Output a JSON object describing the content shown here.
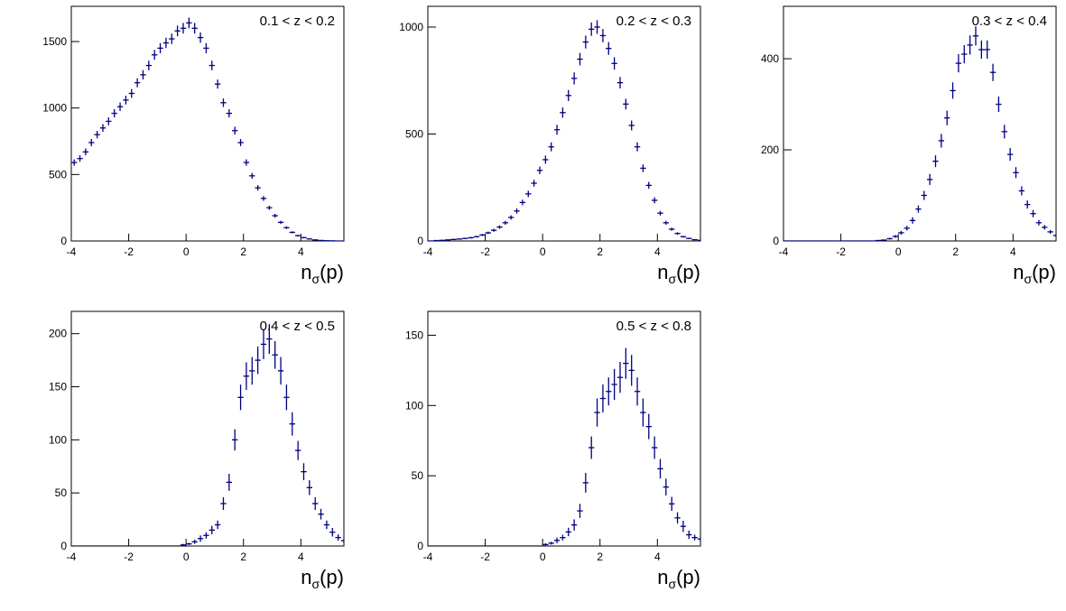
{
  "chart_data": [
    {
      "type": "errorbar",
      "annotation": "0.1 < z < 0.2",
      "x_label": [
        "n",
        "σ",
        "(p)"
      ],
      "color": "#000080",
      "xerr": 0.1,
      "xlim": [
        -4,
        5.5
      ],
      "ylim": [
        0,
        1765
      ],
      "xticks": [
        -4,
        -2,
        0,
        2,
        4
      ],
      "yticks": [
        0,
        500,
        1000,
        1500
      ],
      "x": [
        -3.9,
        -3.7,
        -3.5,
        -3.3,
        -3.1,
        -2.9,
        -2.7,
        -2.5,
        -2.3,
        -2.1,
        -1.9,
        -1.7,
        -1.5,
        -1.3,
        -1.1,
        -0.9,
        -0.7,
        -0.5,
        -0.3,
        -0.1,
        0.1,
        0.3,
        0.5,
        0.7,
        0.9,
        1.1,
        1.3,
        1.5,
        1.7,
        1.9,
        2.1,
        2.3,
        2.5,
        2.7,
        2.9,
        3.1,
        3.3,
        3.5,
        3.7,
        3.9,
        4.1,
        4.3,
        4.5,
        4.7,
        4.9,
        5.1,
        5.3,
        5.5
      ],
      "values": [
        590,
        620,
        670,
        740,
        800,
        850,
        900,
        960,
        1010,
        1060,
        1110,
        1190,
        1250,
        1320,
        1400,
        1450,
        1490,
        1520,
        1580,
        1600,
        1640,
        1600,
        1530,
        1450,
        1320,
        1180,
        1040,
        960,
        830,
        740,
        590,
        490,
        400,
        320,
        250,
        190,
        140,
        100,
        65,
        40,
        25,
        15,
        8,
        4,
        2,
        1,
        0,
        0
      ],
      "errors": [
        24,
        25,
        26,
        27,
        28,
        29,
        30,
        31,
        32,
        33,
        33,
        34,
        35,
        36,
        37,
        38,
        39,
        39,
        40,
        40,
        40,
        40,
        39,
        38,
        36,
        34,
        32,
        31,
        29,
        27,
        24,
        22,
        20,
        18,
        16,
        14,
        12,
        10,
        8,
        6,
        5,
        4,
        3,
        2,
        1,
        1,
        0,
        0
      ]
    },
    {
      "type": "errorbar",
      "annotation": "0.2 < z < 0.3",
      "x_label": [
        "n",
        "σ",
        "(p)"
      ],
      "color": "#000080",
      "xerr": 0.1,
      "xlim": [
        -4,
        5.5
      ],
      "ylim": [
        0,
        1097
      ],
      "xticks": [
        -4,
        -2,
        0,
        2,
        4
      ],
      "yticks": [
        0,
        500,
        1000
      ],
      "x": [
        -3.9,
        -3.7,
        -3.5,
        -3.3,
        -3.1,
        -2.9,
        -2.7,
        -2.5,
        -2.3,
        -2.1,
        -1.9,
        -1.7,
        -1.5,
        -1.3,
        -1.1,
        -0.9,
        -0.7,
        -0.5,
        -0.3,
        -0.1,
        0.1,
        0.3,
        0.5,
        0.7,
        0.9,
        1.1,
        1.3,
        1.5,
        1.7,
        1.9,
        2.1,
        2.3,
        2.5,
        2.7,
        2.9,
        3.1,
        3.3,
        3.5,
        3.7,
        3.9,
        4.1,
        4.3,
        4.5,
        4.7,
        4.9,
        5.1,
        5.3,
        5.5
      ],
      "values": [
        0,
        2,
        3,
        5,
        7,
        9,
        12,
        15,
        20,
        28,
        38,
        50,
        65,
        85,
        110,
        140,
        180,
        220,
        270,
        330,
        380,
        440,
        520,
        600,
        680,
        760,
        850,
        930,
        990,
        1000,
        960,
        900,
        830,
        740,
        640,
        540,
        440,
        340,
        260,
        190,
        130,
        85,
        55,
        35,
        20,
        12,
        6,
        3
      ],
      "errors": [
        0,
        1,
        2,
        2,
        3,
        3,
        3,
        4,
        4,
        5,
        6,
        7,
        8,
        9,
        10,
        12,
        13,
        15,
        16,
        18,
        19,
        21,
        23,
        24,
        26,
        28,
        29,
        30,
        31,
        32,
        31,
        30,
        29,
        27,
        25,
        23,
        21,
        18,
        16,
        14,
        11,
        9,
        7,
        6,
        4,
        3,
        2,
        2
      ]
    },
    {
      "type": "errorbar",
      "annotation": "0.3 < z < 0.4",
      "x_label": [
        "n",
        "σ",
        "(p)"
      ],
      "color": "#000080",
      "xerr": 0.1,
      "xlim": [
        -4,
        5.5
      ],
      "ylim": [
        0,
        515
      ],
      "xticks": [
        -4,
        -2,
        0,
        2,
        4
      ],
      "yticks": [
        0,
        200,
        400
      ],
      "x": [
        -3.9,
        -3.7,
        -3.5,
        -3.3,
        -3.1,
        -2.9,
        -2.7,
        -2.5,
        -2.3,
        -2.1,
        -1.9,
        -1.7,
        -1.5,
        -1.3,
        -1.1,
        -0.9,
        -0.7,
        -0.5,
        -0.3,
        -0.1,
        0.1,
        0.3,
        0.5,
        0.7,
        0.9,
        1.1,
        1.3,
        1.5,
        1.7,
        1.9,
        2.1,
        2.3,
        2.5,
        2.7,
        2.9,
        3.1,
        3.3,
        3.5,
        3.7,
        3.9,
        4.1,
        4.3,
        4.5,
        4.7,
        4.9,
        5.1,
        5.3,
        5.5
      ],
      "values": [
        0,
        0,
        0,
        0,
        0,
        0,
        0,
        0,
        0,
        0,
        0,
        0,
        0,
        0,
        0,
        0,
        1,
        2,
        5,
        10,
        18,
        28,
        45,
        70,
        100,
        135,
        175,
        220,
        270,
        330,
        390,
        410,
        430,
        450,
        420,
        420,
        370,
        300,
        240,
        190,
        150,
        110,
        80,
        60,
        40,
        30,
        20,
        12
      ],
      "errors": [
        0,
        0,
        0,
        0,
        0,
        0,
        0,
        0,
        0,
        0,
        0,
        0,
        0,
        0,
        0,
        0,
        1,
        1,
        2,
        3,
        4,
        5,
        7,
        8,
        10,
        12,
        13,
        15,
        16,
        18,
        20,
        20,
        21,
        21,
        20,
        20,
        19,
        17,
        15,
        14,
        12,
        10,
        9,
        8,
        6,
        5,
        4,
        3
      ]
    },
    {
      "type": "errorbar",
      "annotation": "0.4 < z < 0.5",
      "x_label": [
        "n",
        "σ",
        "(p)"
      ],
      "color": "#000080",
      "xerr": 0.1,
      "xlim": [
        -4,
        5.5
      ],
      "ylim": [
        0,
        221
      ],
      "xticks": [
        -4,
        -2,
        0,
        2,
        4
      ],
      "yticks": [
        0,
        50,
        100,
        150,
        200
      ],
      "x": [
        -3.9,
        -3.7,
        -3.5,
        -3.3,
        -3.1,
        -2.9,
        -2.7,
        -2.5,
        -2.3,
        -2.1,
        -1.9,
        -1.7,
        -1.5,
        -1.3,
        -1.1,
        -0.9,
        -0.7,
        -0.5,
        -0.3,
        -0.1,
        0.1,
        0.3,
        0.5,
        0.7,
        0.9,
        1.1,
        1.3,
        1.5,
        1.7,
        1.9,
        2.1,
        2.3,
        2.5,
        2.7,
        2.9,
        3.1,
        3.3,
        3.5,
        3.7,
        3.9,
        4.1,
        4.3,
        4.5,
        4.7,
        4.9,
        5.1,
        5.3,
        5.5
      ],
      "values": [
        0,
        0,
        0,
        0,
        0,
        0,
        0,
        0,
        0,
        0,
        0,
        0,
        0,
        0,
        0,
        0,
        0,
        0,
        0,
        1,
        2,
        4,
        7,
        10,
        15,
        20,
        40,
        60,
        100,
        140,
        160,
        165,
        175,
        190,
        195,
        180,
        165,
        140,
        115,
        90,
        70,
        55,
        40,
        30,
        20,
        13,
        8,
        5
      ],
      "errors": [
        0,
        0,
        0,
        0,
        0,
        0,
        0,
        0,
        0,
        0,
        0,
        0,
        0,
        0,
        0,
        0,
        0,
        0,
        0,
        1,
        1,
        2,
        3,
        3,
        4,
        4,
        6,
        8,
        10,
        12,
        13,
        13,
        13,
        14,
        14,
        13,
        13,
        12,
        11,
        9,
        8,
        7,
        6,
        5,
        4,
        4,
        3,
        2
      ]
    },
    {
      "type": "errorbar",
      "annotation": "0.5 < z < 0.8",
      "x_label": [
        "n",
        "σ",
        "(p)"
      ],
      "color": "#000080",
      "xerr": 0.1,
      "xlim": [
        -4,
        5.5
      ],
      "ylim": [
        0,
        167
      ],
      "xticks": [
        -4,
        -2,
        0,
        2,
        4
      ],
      "yticks": [
        0,
        50,
        100,
        150
      ],
      "x": [
        -3.9,
        -3.7,
        -3.5,
        -3.3,
        -3.1,
        -2.9,
        -2.7,
        -2.5,
        -2.3,
        -2.1,
        -1.9,
        -1.7,
        -1.5,
        -1.3,
        -1.1,
        -0.9,
        -0.7,
        -0.5,
        -0.3,
        -0.1,
        0.1,
        0.3,
        0.5,
        0.7,
        0.9,
        1.1,
        1.3,
        1.5,
        1.7,
        1.9,
        2.1,
        2.3,
        2.5,
        2.7,
        2.9,
        3.1,
        3.3,
        3.5,
        3.7,
        3.9,
        4.1,
        4.3,
        4.5,
        4.7,
        4.9,
        5.1,
        5.3,
        5.5
      ],
      "values": [
        0,
        0,
        0,
        0,
        0,
        0,
        0,
        0,
        0,
        0,
        0,
        0,
        0,
        0,
        0,
        0,
        0,
        0,
        0,
        0,
        1,
        2,
        4,
        6,
        10,
        15,
        25,
        45,
        70,
        95,
        105,
        110,
        115,
        120,
        130,
        125,
        110,
        95,
        85,
        70,
        55,
        42,
        30,
        20,
        14,
        8,
        6,
        5
      ],
      "errors": [
        0,
        0,
        0,
        0,
        0,
        0,
        0,
        0,
        0,
        0,
        0,
        0,
        0,
        0,
        0,
        0,
        0,
        0,
        0,
        0,
        1,
        1,
        2,
        2,
        3,
        4,
        5,
        7,
        8,
        10,
        10,
        10,
        11,
        11,
        11,
        11,
        10,
        10,
        9,
        8,
        7,
        6,
        5,
        4,
        4,
        3,
        2,
        2
      ]
    }
  ]
}
